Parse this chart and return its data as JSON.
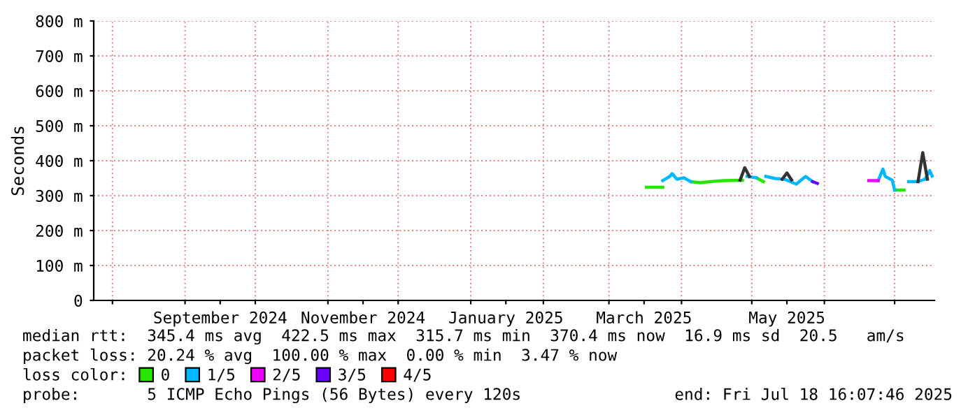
{
  "chart_data": {
    "type": "line",
    "ylabel": "Seconds",
    "xlim": [
      "2024-07-24",
      "2025-07-18"
    ],
    "xticks": [
      {
        "value": "2024-08-01",
        "label": null
      },
      {
        "value": "2024-09-01",
        "label": null
      },
      {
        "value": "2024-10-01",
        "label": null
      },
      {
        "value": "2024-11-01",
        "label": null
      },
      {
        "value": "2024-12-01",
        "label": null
      },
      {
        "value": "2025-01-01",
        "label": null
      },
      {
        "value": "2025-02-01",
        "label": null
      },
      {
        "value": "2025-03-01",
        "label": null
      },
      {
        "value": "2025-04-01",
        "label": null
      },
      {
        "value": "2025-05-01",
        "label": null
      },
      {
        "value": "2025-06-01",
        "label": null
      },
      {
        "value": "2025-07-01",
        "label": null
      },
      {
        "value": "2024-09-16",
        "label": "September 2024"
      },
      {
        "value": "2024-11-16",
        "label": "November 2024"
      },
      {
        "value": "2025-01-16",
        "label": "January 2025"
      },
      {
        "value": "2025-03-16",
        "label": "March 2025"
      },
      {
        "value": "2025-05-16",
        "label": "May 2025"
      }
    ],
    "ylim": [
      0,
      800
    ],
    "yticks": [
      0,
      {
        "value": 100,
        "label": "100 m"
      },
      {
        "value": 200,
        "label": "200 m"
      },
      {
        "value": 300,
        "label": "300 m"
      },
      {
        "value": 400,
        "label": "400 m"
      },
      {
        "value": 500,
        "label": "500 m"
      },
      {
        "value": 600,
        "label": "600 m"
      },
      {
        "value": 700,
        "label": "700 m"
      },
      {
        "value": 800,
        "label": "800 m"
      }
    ],
    "grid": true,
    "legend": "bottom",
    "legend_title": "loss color:",
    "series": [
      {
        "name": "0",
        "color": "#26e600",
        "x": [
          "2025-03-17",
          "2025-03-24",
          "2025-03-30",
          "2025-04-05",
          "2025-04-09",
          "2025-04-13",
          "2025-04-19",
          "2025-04-27",
          "2025-05-01",
          "2025-05-03",
          "2025-05-06",
          "2025-06-01",
          "2025-07-01",
          "2025-07-05"
        ],
        "values": [
          324,
          324,
          null,
          340,
          337,
          340,
          343,
          344,
          null,
          351,
          340,
          null,
          316,
          316
        ]
      },
      {
        "name": "1/5",
        "color": "#00b8ff",
        "x": [
          "2025-03-24",
          "2025-03-27",
          "2025-03-28",
          "2025-03-30",
          "2025-04-02",
          "2025-04-05",
          "2025-04-15",
          "2025-04-29",
          "2025-05-03",
          "2025-05-05",
          "2025-05-07",
          "2025-05-11",
          "2025-05-15",
          "2025-05-20",
          "2025-05-24",
          "2025-05-27",
          "2025-06-10",
          "2025-06-24",
          "2025-06-26",
          "2025-06-27",
          "2025-06-30",
          "2025-07-01",
          "2025-07-04",
          "2025-07-07",
          "2025-07-11",
          "2025-07-14",
          "2025-07-16",
          "2025-07-17"
        ],
        "values": [
          343,
          355,
          363,
          347,
          351,
          340,
          null,
          355,
          351,
          null,
          355,
          349,
          347,
          333,
          355,
          340,
          null,
          343,
          376,
          355,
          344,
          316,
          null,
          340,
          340,
          347,
          372,
          356
        ]
      },
      {
        "name": "2/5",
        "color": "#ee00ff",
        "x": [
          "2025-06-20",
          "2025-06-24"
        ],
        "values": [
          343,
          343
        ]
      },
      {
        "name": "3/5",
        "color": "#6a00ff",
        "x": [
          "2025-05-27",
          "2025-05-29"
        ],
        "values": [
          340,
          335
        ]
      },
      {
        "name": "4/5",
        "color": "#ff0000"
      },
      {
        "color": "#333333",
        "x": [
          "2025-04-26",
          "2025-04-28",
          "2025-04-30",
          "2025-05-05",
          "2025-05-14",
          "2025-05-16",
          "2025-05-18",
          "2025-06-01",
          "2025-07-11",
          "2025-07-13",
          "2025-07-15"
        ],
        "values": [
          344,
          380,
          355,
          null,
          347,
          365,
          345,
          null,
          340,
          423,
          347
        ]
      }
    ],
    "annotations": [
      "median rtt:  345.4 ms avg  422.5 ms max  315.7 ms min  370.4 ms now  16.9 ms sd  20.5   am/s",
      "packet loss: 20.24 % avg  100.00 % max  0.00 % min  3.47 % now",
      "probe:       5 ICMP Echo Pings (56 Bytes) every 120s",
      "end: Fri Jul 18 16:07:46 2025"
    ]
  }
}
